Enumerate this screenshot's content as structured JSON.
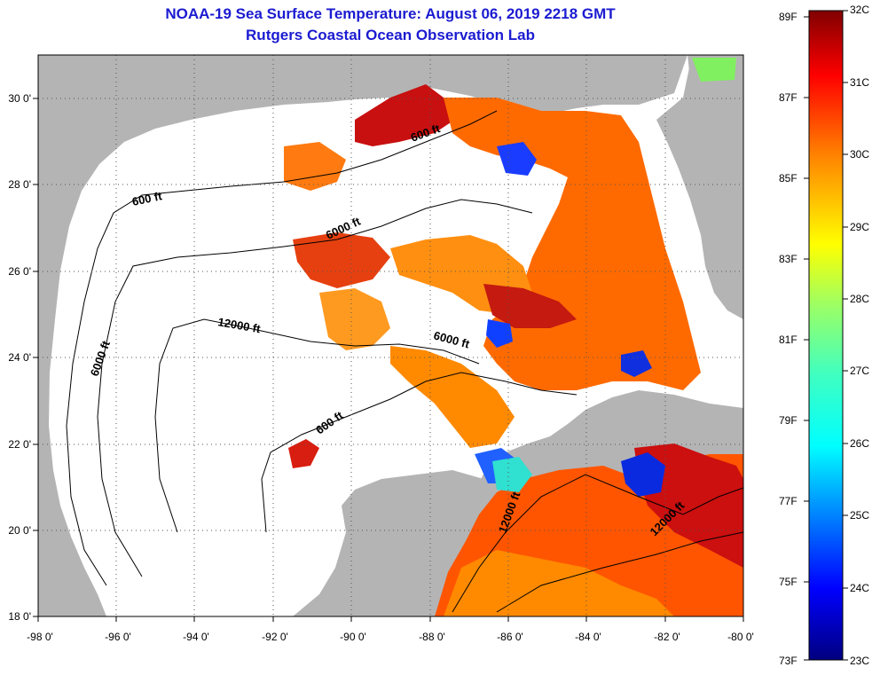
{
  "title": {
    "line1": "NOAA-19 Sea Surface Temperature:  August 06, 2019 2218 GMT",
    "line2": "Rutgers Coastal Ocean Observation Lab"
  },
  "colors": {
    "title": "#1b1bd1",
    "land": "#b4b4b4",
    "cloud": "#ffffff",
    "contour": "#000000"
  },
  "map": {
    "lon_range": [
      -98,
      -80
    ],
    "lat_range": [
      18,
      31
    ],
    "lon_ticks": [
      "-98 0'",
      "-96 0'",
      "-94 0'",
      "-92 0'",
      "-90 0'",
      "-88 0'",
      "-86 0'",
      "-84 0'",
      "-82 0'",
      "-80 0'"
    ],
    "lat_ticks": [
      "18 0'",
      "20 0'",
      "22 0'",
      "24 0'",
      "26 0'",
      "28 0'",
      "30 0'"
    ],
    "contour_labels": [
      "600 ft",
      "600 ft",
      "600 ft",
      "6000 ft",
      "6000 ft",
      "6000 ft",
      "12000 ft",
      "12000 ft",
      "12000 ft"
    ]
  },
  "colorbar": {
    "fahrenheit_labels": [
      "89F",
      "87F",
      "85F",
      "83F",
      "81F",
      "79F",
      "77F",
      "75F",
      "73F"
    ],
    "celsius_labels": [
      "32C",
      "31C",
      "30C",
      "29C",
      "28C",
      "27C",
      "26C",
      "25C",
      "24C",
      "23C"
    ],
    "range_f": [
      73,
      89.6
    ],
    "range_c": [
      23,
      32
    ],
    "stops": [
      "#000080",
      "#0000ff",
      "#0080ff",
      "#00ffff",
      "#40ffc0",
      "#a0ff60",
      "#ffff00",
      "#ff8000",
      "#ff0000",
      "#800000"
    ]
  }
}
